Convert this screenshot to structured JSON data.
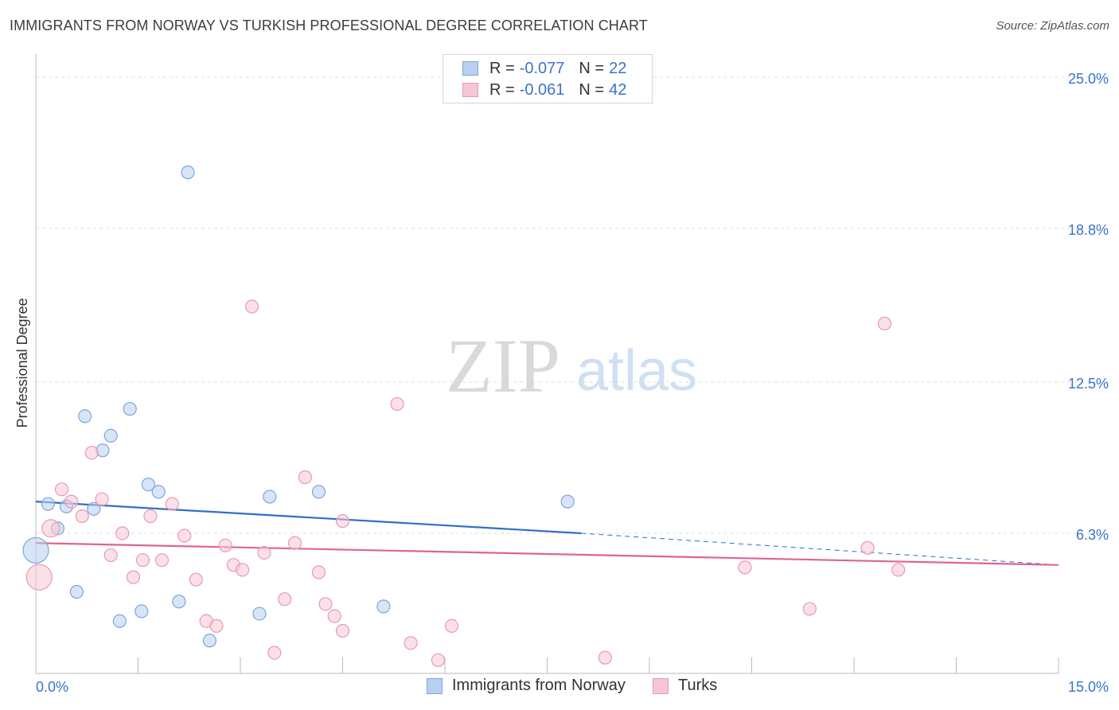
{
  "title": "IMMIGRANTS FROM NORWAY VS TURKISH PROFESSIONAL DEGREE CORRELATION CHART",
  "source": "Source: ZipAtlas.com",
  "watermark": {
    "zip": "ZIP",
    "atlas": "atlas"
  },
  "legend": {
    "norway": {
      "r_label": "R =",
      "r_value": "-0.077",
      "n_label": "N =",
      "n_value": "22"
    },
    "turks": {
      "r_label": "R =",
      "r_value": "-0.061",
      "n_label": "N =",
      "n_value": "42"
    }
  },
  "bottom_legend": {
    "norway": "Immigrants from Norway",
    "turks": "Turks"
  },
  "colors": {
    "norway_fill": "#b8d0f0",
    "norway_stroke": "#7aa6dc",
    "norway_line": "#2f6fc6",
    "turks_fill": "#f7c6d6",
    "turks_stroke": "#e79ab3",
    "turks_line": "#e0648e",
    "tick_label": "#3a74c8",
    "grid": "#dcdcdc"
  },
  "chart_data": {
    "type": "scatter",
    "title": "IMMIGRANTS FROM NORWAY VS TURKISH PROFESSIONAL DEGREE CORRELATION CHART",
    "xlabel": "",
    "ylabel": "Professional Degree",
    "xlim": [
      0,
      15
    ],
    "ylim": [
      0,
      25
    ],
    "x_tick_labels": [
      "0.0%",
      "15.0%"
    ],
    "y_ticks": [
      6.3,
      12.5,
      18.8,
      25.0
    ],
    "y_tick_labels": [
      "6.3%",
      "12.5%",
      "18.8%",
      "25.0%"
    ],
    "grid": true,
    "legend_position": "top-center",
    "series": [
      {
        "name": "Immigrants from Norway",
        "r": -0.077,
        "n": 22,
        "points": [
          {
            "x": 0.0,
            "y": 5.6,
            "big": true
          },
          {
            "x": 0.18,
            "y": 7.5
          },
          {
            "x": 0.32,
            "y": 6.5
          },
          {
            "x": 0.45,
            "y": 7.4
          },
          {
            "x": 0.6,
            "y": 3.9
          },
          {
            "x": 0.72,
            "y": 11.1
          },
          {
            "x": 0.85,
            "y": 7.3
          },
          {
            "x": 0.98,
            "y": 9.7
          },
          {
            "x": 1.1,
            "y": 10.3
          },
          {
            "x": 1.23,
            "y": 2.7
          },
          {
            "x": 1.38,
            "y": 11.4
          },
          {
            "x": 1.55,
            "y": 3.1
          },
          {
            "x": 1.65,
            "y": 8.3
          },
          {
            "x": 1.8,
            "y": 8.0
          },
          {
            "x": 2.1,
            "y": 3.5
          },
          {
            "x": 2.23,
            "y": 21.1
          },
          {
            "x": 2.55,
            "y": 1.9
          },
          {
            "x": 3.28,
            "y": 3.0
          },
          {
            "x": 3.43,
            "y": 7.8
          },
          {
            "x": 4.15,
            "y": 8.0
          },
          {
            "x": 5.1,
            "y": 3.3
          },
          {
            "x": 7.8,
            "y": 7.6
          }
        ],
        "trend": {
          "x0": 0,
          "y0": 7.6,
          "x1": 8.0,
          "y1": 6.3,
          "dashed_to": {
            "x": 15,
            "y": 5.0
          }
        }
      },
      {
        "name": "Turks",
        "r": -0.061,
        "n": 42,
        "points": [
          {
            "x": 0.05,
            "y": 4.5,
            "big": true
          },
          {
            "x": 0.22,
            "y": 6.5,
            "mid": true
          },
          {
            "x": 0.38,
            "y": 8.1
          },
          {
            "x": 0.52,
            "y": 7.6
          },
          {
            "x": 0.68,
            "y": 7.0
          },
          {
            "x": 0.82,
            "y": 9.6
          },
          {
            "x": 0.97,
            "y": 7.7
          },
          {
            "x": 1.1,
            "y": 5.4
          },
          {
            "x": 1.27,
            "y": 6.3
          },
          {
            "x": 1.43,
            "y": 4.5
          },
          {
            "x": 1.57,
            "y": 5.2
          },
          {
            "x": 1.68,
            "y": 7.0
          },
          {
            "x": 1.85,
            "y": 5.2
          },
          {
            "x": 2.0,
            "y": 7.5
          },
          {
            "x": 2.18,
            "y": 6.2
          },
          {
            "x": 2.35,
            "y": 4.4
          },
          {
            "x": 2.5,
            "y": 2.7
          },
          {
            "x": 2.65,
            "y": 2.5
          },
          {
            "x": 2.78,
            "y": 5.8
          },
          {
            "x": 2.9,
            "y": 5.0
          },
          {
            "x": 3.03,
            "y": 4.8
          },
          {
            "x": 3.17,
            "y": 15.6
          },
          {
            "x": 3.35,
            "y": 5.5
          },
          {
            "x": 3.5,
            "y": 1.4
          },
          {
            "x": 3.65,
            "y": 3.6
          },
          {
            "x": 3.8,
            "y": 5.9
          },
          {
            "x": 3.95,
            "y": 8.6
          },
          {
            "x": 4.15,
            "y": 4.7
          },
          {
            "x": 4.25,
            "y": 3.4
          },
          {
            "x": 4.38,
            "y": 2.9
          },
          {
            "x": 4.5,
            "y": 6.8
          },
          {
            "x": 4.5,
            "y": 2.3
          },
          {
            "x": 5.3,
            "y": 11.6
          },
          {
            "x": 5.5,
            "y": 1.8
          },
          {
            "x": 5.9,
            "y": 1.1
          },
          {
            "x": 6.1,
            "y": 2.5
          },
          {
            "x": 8.35,
            "y": 1.2
          },
          {
            "x": 10.4,
            "y": 4.9
          },
          {
            "x": 11.35,
            "y": 3.2
          },
          {
            "x": 12.2,
            "y": 5.7
          },
          {
            "x": 12.45,
            "y": 14.9
          },
          {
            "x": 12.65,
            "y": 4.8
          }
        ],
        "trend": {
          "x0": 0,
          "y0": 5.9,
          "x1": 15,
          "y1": 5.0
        }
      }
    ]
  }
}
